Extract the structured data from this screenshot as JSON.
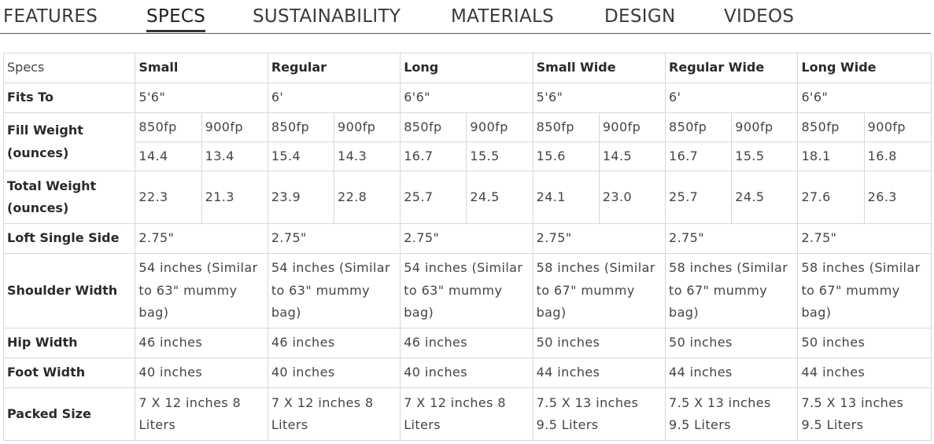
{
  "tabs": [
    "FEATURES",
    "SPECS",
    "SUSTAINABILITY",
    "MATERIALS",
    "DESIGN",
    "VIDEOS"
  ],
  "active_tab": "SPECS",
  "table": {
    "corner_label": "Specs",
    "columns": [
      "Small",
      "Regular",
      "Long",
      "Small Wide",
      "Regular Wide",
      "Long Wide"
    ],
    "rows": {
      "fits_to": {
        "label": "Fits To",
        "values": [
          "5'6\"",
          "6'",
          "6'6\"",
          "5'6\"",
          "6'",
          "6'6\""
        ]
      },
      "fill_weight": {
        "label": "Fill Weight (ounces)",
        "fill_powers": [
          "850fp",
          "900fp"
        ],
        "values": [
          [
            "14.4",
            "13.4"
          ],
          [
            "15.4",
            "14.3"
          ],
          [
            "16.7",
            "15.5"
          ],
          [
            "15.6",
            "14.5"
          ],
          [
            "16.7",
            "15.5"
          ],
          [
            "18.1",
            "16.8"
          ]
        ]
      },
      "total_weight": {
        "label": "Total Weight (ounces)",
        "values": [
          [
            "22.3",
            "21.3"
          ],
          [
            "23.9",
            "22.8"
          ],
          [
            "25.7",
            "24.5"
          ],
          [
            "24.1",
            "23.0"
          ],
          [
            "25.7",
            "24.5"
          ],
          [
            "27.6",
            "26.3"
          ]
        ]
      },
      "loft_single_side": {
        "label": "Loft Single Side",
        "values": [
          "2.75\"",
          "2.75\"",
          "2.75\"",
          "2.75\"",
          "2.75\"",
          "2.75\""
        ]
      },
      "shoulder_width": {
        "label": "Shoulder Width",
        "values": [
          "54 inches (Similar to 63\" mummy bag)",
          "54 inches (Similar to 63\" mummy bag)",
          "54 inches (Similar to 63\" mummy bag)",
          "58 inches (Similar to 67\" mummy bag)",
          "58 inches (Similar to 67\" mummy bag)",
          "58 inches (Similar to 67\" mummy bag)"
        ]
      },
      "hip_width": {
        "label": "Hip Width",
        "values": [
          "46 inches",
          "46 inches",
          "46 inches",
          "50 inches",
          "50 inches",
          "50 inches"
        ]
      },
      "foot_width": {
        "label": "Foot Width",
        "values": [
          "40 inches",
          "40 inches",
          "40 inches",
          "44 inches",
          "44 inches",
          "44 inches"
        ]
      },
      "packed_size": {
        "label": "Packed Size",
        "values": [
          "7 X 12 inches 8 Liters",
          "7 X 12 inches 8 Liters",
          "7 X 12 inches 8 Liters",
          "7.5 X 13 inches 9.5 Liters",
          "7.5 X 13 inches 9.5 Liters",
          "7.5 X 13 inches 9.5 Liters"
        ]
      }
    }
  }
}
